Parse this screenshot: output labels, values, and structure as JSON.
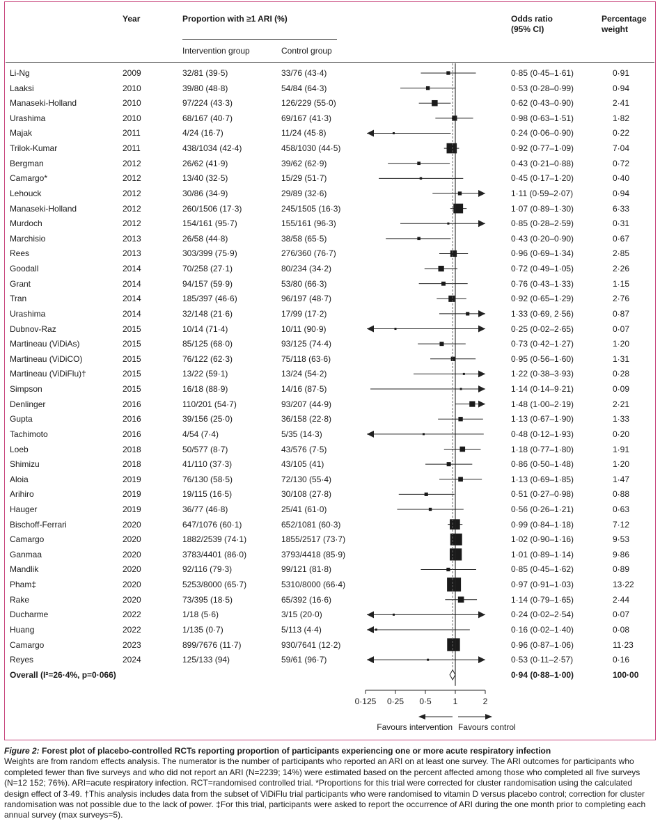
{
  "header": {
    "year": "Year",
    "proportion": "Proportion with ≥1 ARI (%)",
    "intervention": "Intervention group",
    "control": "Control group",
    "or_line1": "Odds ratio",
    "or_line2": "(95% CI)",
    "wt_line1": "Percentage",
    "wt_line2": "weight"
  },
  "chart_data": {
    "type": "forest",
    "x_scale": "log",
    "xlim": [
      0.0625,
      2.4
    ],
    "ticks": [
      "0·125",
      "0·25",
      "0·5",
      "1",
      "2"
    ],
    "tick_values": [
      0.125,
      0.25,
      0.5,
      1,
      2
    ],
    "reference_line": 1,
    "pooled_line": 0.94,
    "favours_left": "Favours intervention",
    "favours_right": "Favours control",
    "studies": [
      {
        "name": "Li-Ng",
        "year": "2009",
        "int": "32/81 (39·5)",
        "ctl": "33/76 (43·4)",
        "or": 0.85,
        "lo": 0.45,
        "hi": 1.61,
        "ci": "0·85 (0·45–1·61)",
        "weight": "0·91",
        "w": 0.91
      },
      {
        "name": "Laaksi",
        "year": "2010",
        "int": "39/80 (48·8)",
        "ctl": "54/84 (64·3)",
        "or": 0.53,
        "lo": 0.28,
        "hi": 0.99,
        "ci": "0·53 (0·28–0·99)",
        "weight": "0·94",
        "w": 0.94
      },
      {
        "name": "Manaseki-Holland",
        "year": "2010",
        "int": "97/224 (43·3)",
        "ctl": "126/229 (55·0)",
        "or": 0.62,
        "lo": 0.43,
        "hi": 0.9,
        "ci": "0·62 (0·43–0·90)",
        "weight": "2·41",
        "w": 2.41
      },
      {
        "name": "Urashima",
        "year": "2010",
        "int": "68/167 (40·7)",
        "ctl": "69/167 (41·3)",
        "or": 0.98,
        "lo": 0.63,
        "hi": 1.51,
        "ci": "0·98 (0·63–1·51)",
        "weight": "1·82",
        "w": 1.82
      },
      {
        "name": "Majak",
        "year": "2011",
        "int": "4/24 (16·7)",
        "ctl": "11/24 (45·8)",
        "or": 0.24,
        "lo": 0.06,
        "hi": 0.9,
        "ci": "0·24 (0·06–0·90)",
        "weight": "0·22",
        "w": 0.22
      },
      {
        "name": "Trilok-Kumar",
        "year": "2011",
        "int": "438/1034 (42·4)",
        "ctl": "458/1030 (44·5)",
        "or": 0.92,
        "lo": 0.77,
        "hi": 1.09,
        "ci": "0·92 (0·77–1·09)",
        "weight": "7·04",
        "w": 7.04
      },
      {
        "name": "Bergman",
        "year": "2012",
        "int": "26/62 (41·9)",
        "ctl": "39/62 (62·9)",
        "or": 0.43,
        "lo": 0.21,
        "hi": 0.88,
        "ci": "0·43 (0·21–0·88)",
        "weight": "0·72",
        "w": 0.72
      },
      {
        "name": "Camargo*",
        "year": "2012",
        "int": "13/40 (32·5)",
        "ctl": "15/29 (51·7)",
        "or": 0.45,
        "lo": 0.17,
        "hi": 1.2,
        "ci": "0·45 (0·17–1·20)",
        "weight": "0·40",
        "w": 0.4
      },
      {
        "name": "Lehouck",
        "year": "2012",
        "int": "30/86 (34·9)",
        "ctl": "29/89 (32·6)",
        "or": 1.11,
        "lo": 0.59,
        "hi": 2.07,
        "ci": "1·11 (0·59–2·07)",
        "weight": "0·94",
        "w": 0.94
      },
      {
        "name": "Manaseki-Holland",
        "year": "2012",
        "int": "260/1506 (17·3)",
        "ctl": "245/1505 (16·3)",
        "or": 1.07,
        "lo": 0.89,
        "hi": 1.3,
        "ci": "1·07 (0·89–1·30)",
        "weight": "6·33",
        "w": 6.33
      },
      {
        "name": "Murdoch",
        "year": "2012",
        "int": "154/161 (95·7)",
        "ctl": "155/161 (96·3)",
        "or": 0.85,
        "lo": 0.28,
        "hi": 2.59,
        "ci": "0·85 (0·28–2·59)",
        "weight": "0·31",
        "w": 0.31
      },
      {
        "name": "Marchisio",
        "year": "2013",
        "int": "26/58 (44·8)",
        "ctl": "38/58 (65·5)",
        "or": 0.43,
        "lo": 0.2,
        "hi": 0.9,
        "ci": "0·43 (0·20–0·90)",
        "weight": "0·67",
        "w": 0.67
      },
      {
        "name": "Rees",
        "year": "2013",
        "int": "303/399 (75·9)",
        "ctl": "276/360 (76·7)",
        "or": 0.96,
        "lo": 0.69,
        "hi": 1.34,
        "ci": "0·96 (0·69–1·34)",
        "weight": "2·85",
        "w": 2.85
      },
      {
        "name": "Goodall",
        "year": "2014",
        "int": "70/258 (27·1)",
        "ctl": "80/234 (34·2)",
        "or": 0.72,
        "lo": 0.49,
        "hi": 1.05,
        "ci": "0·72 (0·49–1·05)",
        "weight": "2·26",
        "w": 2.26
      },
      {
        "name": "Grant",
        "year": "2014",
        "int": "94/157 (59·9)",
        "ctl": "53/80 (66·3)",
        "or": 0.76,
        "lo": 0.43,
        "hi": 1.33,
        "ci": "0·76 (0·43–1·33)",
        "weight": "1·15",
        "w": 1.15
      },
      {
        "name": "Tran",
        "year": "2014",
        "int": "185/397 (46·6)",
        "ctl": "96/197 (48·7)",
        "or": 0.92,
        "lo": 0.65,
        "hi": 1.29,
        "ci": "0·92 (0·65–1·29)",
        "weight": "2·76",
        "w": 2.76
      },
      {
        "name": "Urashima",
        "year": "2014",
        "int": "32/148 (21·6)",
        "ctl": "17/99 (17·2)",
        "or": 1.33,
        "lo": 0.69,
        "hi": 2.56,
        "ci": "1·33 (0·69, 2·56)",
        "weight": "0·87",
        "w": 0.87
      },
      {
        "name": "Dubnov-Raz",
        "year": "2015",
        "int": "10/14 (71·4)",
        "ctl": "10/11 (90·9)",
        "or": 0.25,
        "lo": 0.02,
        "hi": 2.65,
        "ci": "0·25 (0·02–2·65)",
        "weight": "0·07",
        "w": 0.07
      },
      {
        "name": "Martineau  (ViDiAs)",
        "year": "2015",
        "int": "85/125 (68·0)",
        "ctl": "93/125 (74·4)",
        "or": 0.73,
        "lo": 0.42,
        "hi": 1.27,
        "ci": "0·73 (0·42–1·27)",
        "weight": "1·20",
        "w": 1.2
      },
      {
        "name": "Martineau (ViDiCO)",
        "year": "2015",
        "int": "76/122 (62·3)",
        "ctl": "75/118 (63·6)",
        "or": 0.95,
        "lo": 0.56,
        "hi": 1.6,
        "ci": "0·95 (0·56–1·60)",
        "weight": "1·31",
        "w": 1.31
      },
      {
        "name": "Martineau (ViDiFlu)†",
        "year": "2015",
        "int": "13/22 (59·1)",
        "ctl": "13/24 (54·2)",
        "or": 1.22,
        "lo": 0.38,
        "hi": 3.93,
        "ci": "1·22 (0·38–3·93)",
        "weight": "0·28",
        "w": 0.28
      },
      {
        "name": "Simpson",
        "year": "2015",
        "int": "16/18 (88·9)",
        "ctl": "14/16 (87·5)",
        "or": 1.14,
        "lo": 0.14,
        "hi": 9.21,
        "ci": "1·14 (0·14–9·21)",
        "weight": "0·09",
        "w": 0.09
      },
      {
        "name": "Denlinger",
        "year": "2016",
        "int": "110/201 (54·7)",
        "ctl": "93/207 (44·9)",
        "or": 1.48,
        "lo": 1.0,
        "hi": 2.19,
        "ci": "1·48 (1·00–2·19)",
        "weight": "2·21",
        "w": 2.21
      },
      {
        "name": "Gupta",
        "year": "2016",
        "int": "39/156 (25·0)",
        "ctl": "36/158 (22·8)",
        "or": 1.13,
        "lo": 0.67,
        "hi": 1.9,
        "ci": "1·13 (0·67–1·90)",
        "weight": "1·33",
        "w": 1.33
      },
      {
        "name": "Tachimoto",
        "year": "2016",
        "int": "4/54 (7·4)",
        "ctl": "5/35 (14·3)",
        "or": 0.48,
        "lo": 0.12,
        "hi": 1.93,
        "ci": "0·48 (0·12–1·93)",
        "weight": "0·20",
        "w": 0.2
      },
      {
        "name": "Loeb",
        "year": "2018",
        "int": "50/577 (8·7)",
        "ctl": "43/576 (7·5)",
        "or": 1.18,
        "lo": 0.77,
        "hi": 1.8,
        "ci": "1·18 (0·77–1·80)",
        "weight": "1·91",
        "w": 1.91
      },
      {
        "name": "Shimizu",
        "year": "2018",
        "int": "41/110 (37·3)",
        "ctl": "43/105 (41)",
        "or": 0.86,
        "lo": 0.5,
        "hi": 1.48,
        "ci": "0·86 (0·50–1·48)",
        "weight": "1·20",
        "w": 1.2
      },
      {
        "name": "Aloia",
        "year": "2019",
        "int": "76/130 (58·5)",
        "ctl": "72/130 (55·4)",
        "or": 1.13,
        "lo": 0.69,
        "hi": 1.85,
        "ci": "1·13 (0·69–1·85)",
        "weight": "1·47",
        "w": 1.47
      },
      {
        "name": "Arihiro",
        "year": "2019",
        "int": "19/115 (16·5)",
        "ctl": "30/108 (27·8)",
        "or": 0.51,
        "lo": 0.27,
        "hi": 0.98,
        "ci": "0·51 (0·27–0·98)",
        "weight": "0·88",
        "w": 0.88
      },
      {
        "name": "Hauger",
        "year": "2019",
        "int": "36/77 (46·8)",
        "ctl": "25/41 (61·0)",
        "or": 0.56,
        "lo": 0.26,
        "hi": 1.21,
        "ci": "0·56 (0·26–1·21)",
        "weight": "0·63",
        "w": 0.63
      },
      {
        "name": "Bischoff-Ferrari",
        "year": "2020",
        "int": "647/1076 (60·1)",
        "ctl": "652/1081 (60·3)",
        "or": 0.99,
        "lo": 0.84,
        "hi": 1.18,
        "ci": "0·99 (0·84–1·18)",
        "weight": "7·12",
        "w": 7.12
      },
      {
        "name": "Camargo",
        "year": "2020",
        "int": "1882/2539 (74·1)",
        "ctl": "1855/2517 (73·7)",
        "or": 1.02,
        "lo": 0.9,
        "hi": 1.16,
        "ci": "1·02 (0·90–1·16)",
        "weight": "9·53",
        "w": 9.53
      },
      {
        "name": "Ganmaa",
        "year": "2020",
        "int": "3783/4401 (86·0)",
        "ctl": "3793/4418 (85·9)",
        "or": 1.01,
        "lo": 0.89,
        "hi": 1.14,
        "ci": "1·01 (0·89–1·14)",
        "weight": "9·86",
        "w": 9.86
      },
      {
        "name": "Mandlik",
        "year": "2020",
        "int": "92/116 (79·3)",
        "ctl": "99/121 (81·8)",
        "or": 0.85,
        "lo": 0.45,
        "hi": 1.62,
        "ci": "0·85 (0·45–1·62)",
        "weight": "0·89",
        "w": 0.89
      },
      {
        "name": "Pham‡",
        "year": "2020",
        "int": "5253/8000 (65·7)",
        "ctl": "5310/8000 (66·4)",
        "or": 0.97,
        "lo": 0.91,
        "hi": 1.03,
        "ci": "0·97 (0·91–1·03)",
        "weight": "13·22",
        "w": 13.22
      },
      {
        "name": "Rake",
        "year": "2020",
        "int": "73/395 (18·5)",
        "ctl": "65/392 (16·6)",
        "or": 1.14,
        "lo": 0.79,
        "hi": 1.65,
        "ci": "1·14 (0·79–1·65)",
        "weight": "2·44",
        "w": 2.44
      },
      {
        "name": "Ducharme",
        "year": "2022",
        "int": "1/18 (5·6)",
        "ctl": "3/15 (20·0)",
        "or": 0.24,
        "lo": 0.02,
        "hi": 2.54,
        "ci": "0·24 (0·02–2·54)",
        "weight": "0·07",
        "w": 0.07
      },
      {
        "name": "Huang",
        "year": "2022",
        "int": "1/135 (0·7)",
        "ctl": "5/113 (4·4)",
        "or": 0.16,
        "lo": 0.02,
        "hi": 1.4,
        "ci": "0·16 (0·02–1·40)",
        "weight": "0·08",
        "w": 0.08
      },
      {
        "name": "Camargo",
        "year": "2023",
        "int": "899/7676 (11·7)",
        "ctl": "930/7641 (12·2)",
        "or": 0.96,
        "lo": 0.87,
        "hi": 1.06,
        "ci": "0·96 (0·87–1·06)",
        "weight": "11·23",
        "w": 11.23
      },
      {
        "name": "Reyes",
        "year": "2024",
        "int": "125/133 (94)",
        "ctl": "59/61 (96·7)",
        "or": 0.53,
        "lo": 0.11,
        "hi": 2.57,
        "ci": "0·53 (0·11–2·57)",
        "weight": "0·16",
        "w": 0.16
      }
    ],
    "overall": {
      "label": "Overall (I²=26·4%, p=0·066)",
      "or": 0.94,
      "lo": 0.88,
      "hi": 1.0,
      "ci": "0·94 (0·88–1·00)",
      "weight": "100·00"
    }
  },
  "caption": {
    "figure_label": "Figure 2:",
    "figure_title": " Forest plot of placebo-controlled RCTs reporting proportion of participants experiencing one or more acute respiratory infection",
    "body": "Weights are from random effects analysis. The numerator is the number of participants who reported an ARI on at least one survey. The ARI outcomes for participants who completed fewer than five surveys and who did not report an ARI (N=2239; 14%) were estimated based on the percent affected among those who completed all five surveys (N=12 152; 76%). ARI=acute respiratory infection. RCT=randomised controlled trial. *Proportions for this trial were corrected for cluster randomisation using the calculated design effect of 3·49. †This analysis includes data from the subset of ViDiFlu trial participants who were randomised to vitamin D versus placebo control; correction for cluster randomisation was not possible due to the lack of power. ‡For this trial, participants were asked to report the occurrence of ARI during the one month prior to completing each annual survey (max surveys=5)."
  }
}
